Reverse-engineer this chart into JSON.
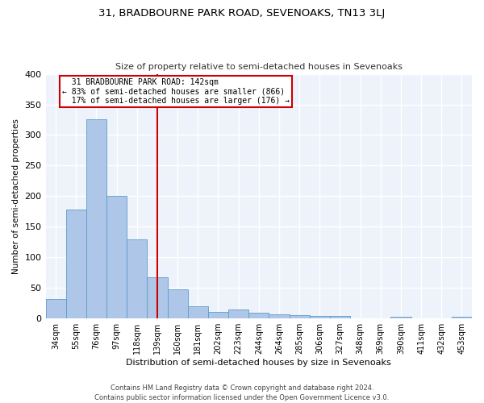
{
  "title1": "31, BRADBOURNE PARK ROAD, SEVENOAKS, TN13 3LJ",
  "title2": "Size of property relative to semi-detached houses in Sevenoaks",
  "xlabel": "Distribution of semi-detached houses by size in Sevenoaks",
  "ylabel": "Number of semi-detached properties",
  "categories": [
    "34sqm",
    "55sqm",
    "76sqm",
    "97sqm",
    "118sqm",
    "139sqm",
    "160sqm",
    "181sqm",
    "202sqm",
    "223sqm",
    "244sqm",
    "264sqm",
    "285sqm",
    "306sqm",
    "327sqm",
    "348sqm",
    "369sqm",
    "390sqm",
    "411sqm",
    "432sqm",
    "453sqm"
  ],
  "values": [
    32,
    178,
    325,
    200,
    130,
    68,
    48,
    20,
    11,
    15,
    10,
    7,
    5,
    4,
    4,
    0,
    0,
    3,
    0,
    0,
    3
  ],
  "bar_color": "#aec6e8",
  "bar_edge_color": "#5a9ec8",
  "vline_x": 5.0,
  "vline_label": "31 BRADBOURNE PARK ROAD: 142sqm",
  "pct_smaller": "83% of semi-detached houses are smaller (866)",
  "pct_larger": "17% of semi-detached houses are larger (176)",
  "vline_color": "#cc0000",
  "annotation_box_edge": "#cc0000",
  "background_color": "#eef2fb",
  "grid_color": "#ffffff",
  "footer": "Contains HM Land Registry data © Crown copyright and database right 2024.\nContains public sector information licensed under the Open Government Licence v3.0.",
  "ylim": [
    0,
    400
  ],
  "yticks": [
    0,
    50,
    100,
    150,
    200,
    250,
    300,
    350,
    400
  ]
}
